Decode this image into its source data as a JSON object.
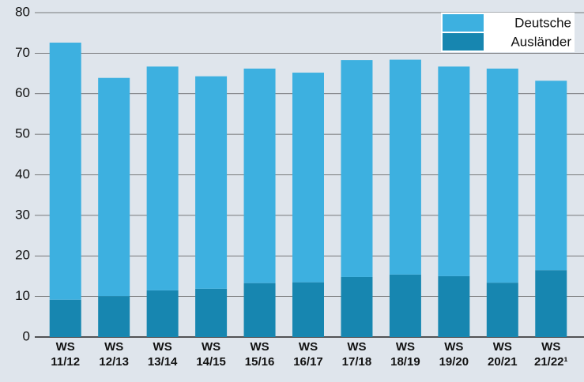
{
  "chart_data": {
    "type": "stacked_bar",
    "categories": [
      "WS 11/12",
      "WS 12/13",
      "WS 13/14",
      "WS 14/15",
      "WS 15/16",
      "WS 16/17",
      "WS 17/18",
      "WS 18/19",
      "WS 19/20",
      "WS 20/21",
      "WS 21/22¹"
    ],
    "series": [
      {
        "name": "Deutsche",
        "color": "#3db0e0",
        "values": [
          63.4,
          53.8,
          55.2,
          52.4,
          52.9,
          51.7,
          53.5,
          53.0,
          51.7,
          52.8,
          46.7
        ]
      },
      {
        "name": "Ausländer",
        "color": "#1786b0",
        "values": [
          9.2,
          10.1,
          11.5,
          11.9,
          13.3,
          13.5,
          14.8,
          15.4,
          15.0,
          13.4,
          16.5
        ]
      }
    ],
    "ylim": [
      0,
      80
    ],
    "yticks": [
      0,
      10,
      20,
      30,
      40,
      50,
      60,
      70,
      80
    ],
    "grid": true,
    "legend": "top-right"
  }
}
